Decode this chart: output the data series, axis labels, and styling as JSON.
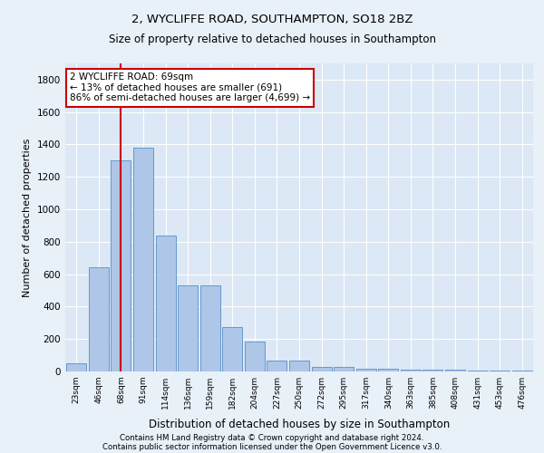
{
  "title1": "2, WYCLIFFE ROAD, SOUTHAMPTON, SO18 2BZ",
  "title2": "Size of property relative to detached houses in Southampton",
  "xlabel": "Distribution of detached houses by size in Southampton",
  "ylabel": "Number of detached properties",
  "categories": [
    "23sqm",
    "46sqm",
    "68sqm",
    "91sqm",
    "114sqm",
    "136sqm",
    "159sqm",
    "182sqm",
    "204sqm",
    "227sqm",
    "250sqm",
    "272sqm",
    "295sqm",
    "317sqm",
    "340sqm",
    "363sqm",
    "385sqm",
    "408sqm",
    "431sqm",
    "453sqm",
    "476sqm"
  ],
  "values": [
    50,
    640,
    1300,
    1380,
    840,
    530,
    530,
    275,
    185,
    65,
    65,
    30,
    30,
    15,
    15,
    10,
    10,
    10,
    5,
    5,
    5
  ],
  "bar_color": "#aec6e8",
  "bar_edge_color": "#6699cc",
  "vline_x": 2.0,
  "vline_color": "#cc0000",
  "annotation_text": "2 WYCLIFFE ROAD: 69sqm\n← 13% of detached houses are smaller (691)\n86% of semi-detached houses are larger (4,699) →",
  "bg_color": "#e8f0f8",
  "plot_bg_color": "#dce8f5",
  "ylim": [
    0,
    1900
  ],
  "yticks": [
    0,
    200,
    400,
    600,
    800,
    1000,
    1200,
    1400,
    1600,
    1800
  ],
  "footer1": "Contains HM Land Registry data © Crown copyright and database right 2024.",
  "footer2": "Contains public sector information licensed under the Open Government Licence v3.0."
}
